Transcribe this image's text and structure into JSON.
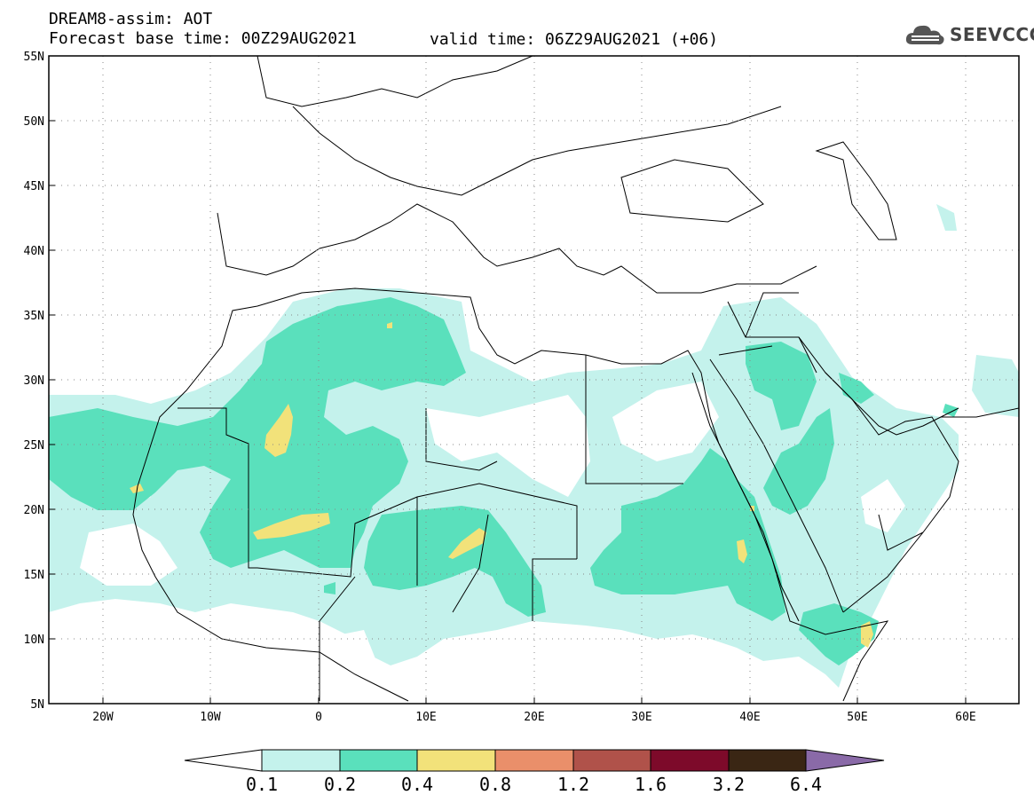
{
  "header": {
    "title": "DREAM8-assim: AOT",
    "forecast_base": "Forecast base time: 00Z29AUG2021",
    "valid_time": "valid time: 06Z29AUG2021 (+06)",
    "logo_text": "SEEVCCC",
    "logo_icon": "cloud-icon"
  },
  "map": {
    "projection": "lat-lon",
    "lon_range": [
      -25,
      65
    ],
    "lat_range": [
      5,
      55
    ],
    "lat_labels": [
      "55N",
      "50N",
      "45N",
      "40N",
      "35N",
      "30N",
      "25N",
      "20N",
      "15N",
      "10N",
      "5N"
    ],
    "lon_labels": [
      "20W",
      "10W",
      "0",
      "10E",
      "20E",
      "30E",
      "40E",
      "50E",
      "60E"
    ],
    "grid": "dotted",
    "field": "Aerosol Optical Thickness"
  },
  "colorbar": {
    "labels": [
      "0.1",
      "0.2",
      "0.4",
      "0.8",
      "1.2",
      "1.6",
      "3.2",
      "6.4"
    ],
    "colors": [
      "#c4f2ec",
      "#5ae0bc",
      "#f2e27a",
      "#ea8f6a",
      "#b0524a",
      "#7d0a2a",
      "#3a2614",
      "#8a6aa8"
    ]
  }
}
